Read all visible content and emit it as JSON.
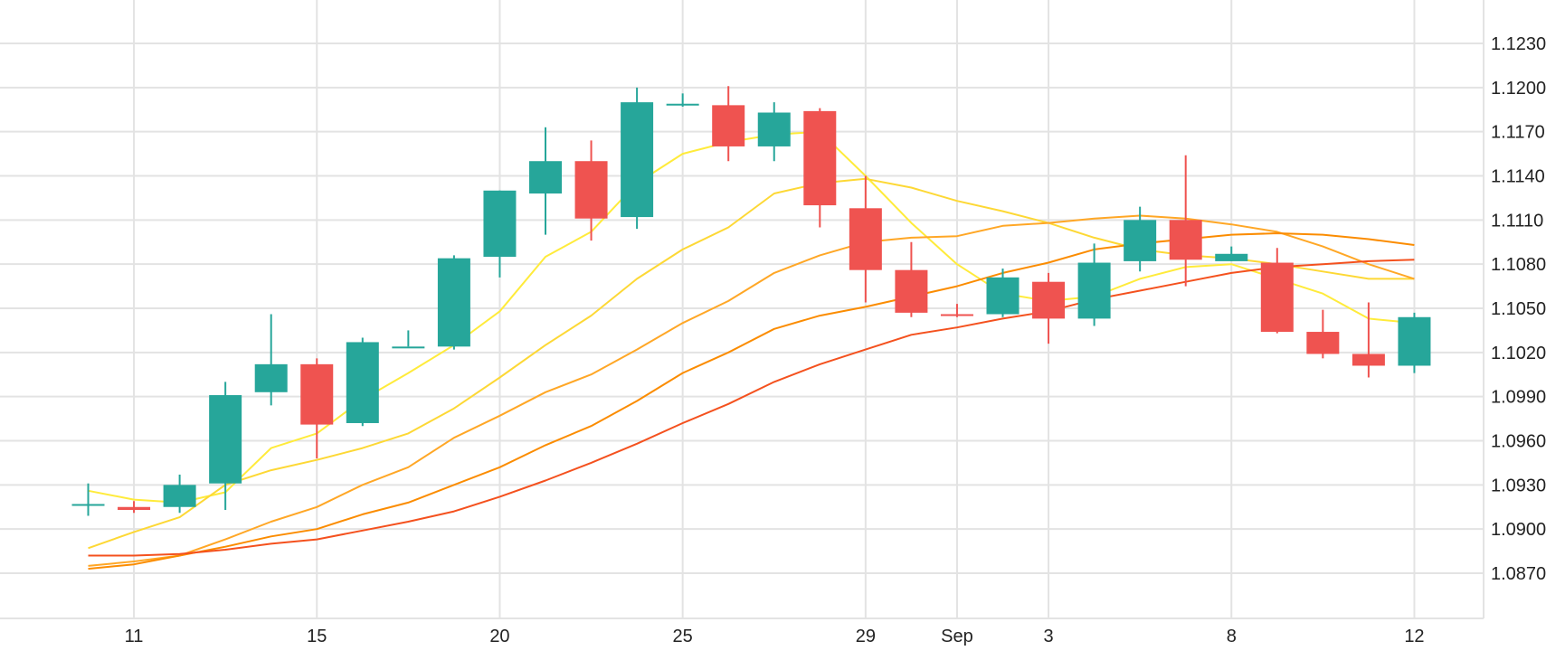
{
  "chart_data": {
    "type": "candlestick",
    "title": "",
    "xlabel": "",
    "ylabel": "",
    "ylim": [
      1.084,
      1.125
    ],
    "y_ticks": [
      "1.0870",
      "1.0900",
      "1.0930",
      "1.0960",
      "1.0990",
      "1.1020",
      "1.1050",
      "1.1080",
      "1.1110",
      "1.1140",
      "1.1170",
      "1.1200",
      "1.1230"
    ],
    "x_ticks": [
      {
        "label": "11",
        "index": 1
      },
      {
        "label": "15",
        "index": 5
      },
      {
        "label": "20",
        "index": 9
      },
      {
        "label": "25",
        "index": 13
      },
      {
        "label": "29",
        "index": 17
      },
      {
        "label": "Sep",
        "index": 19
      },
      {
        "label": "3",
        "index": 21
      },
      {
        "label": "8",
        "index": 25
      },
      {
        "label": "12",
        "index": 29
      }
    ],
    "grid": true,
    "up_color": "#26a69a",
    "down_color": "#ef5350",
    "candles": [
      {
        "o": 1.0917,
        "h": 1.0931,
        "l": 1.0909,
        "c": 1.0917
      },
      {
        "o": 1.0915,
        "h": 1.0919,
        "l": 1.0911,
        "c": 1.0913
      },
      {
        "o": 1.0915,
        "h": 1.0937,
        "l": 1.0911,
        "c": 1.093
      },
      {
        "o": 1.0931,
        "h": 1.1,
        "l": 1.0913,
        "c": 1.0991
      },
      {
        "o": 1.0993,
        "h": 1.1046,
        "l": 1.0984,
        "c": 1.1012
      },
      {
        "o": 1.1012,
        "h": 1.1016,
        "l": 1.0948,
        "c": 1.0971
      },
      {
        "o": 1.0972,
        "h": 1.103,
        "l": 1.097,
        "c": 1.1027
      },
      {
        "o": 1.1024,
        "h": 1.1035,
        "l": 1.1024,
        "c": 1.1024
      },
      {
        "o": 1.1024,
        "h": 1.1086,
        "l": 1.1022,
        "c": 1.1084
      },
      {
        "o": 1.1085,
        "h": 1.113,
        "l": 1.1071,
        "c": 1.113
      },
      {
        "o": 1.1128,
        "h": 1.1173,
        "l": 1.11,
        "c": 1.115
      },
      {
        "o": 1.115,
        "h": 1.1164,
        "l": 1.1096,
        "c": 1.1111
      },
      {
        "o": 1.1112,
        "h": 1.12,
        "l": 1.1104,
        "c": 1.119
      },
      {
        "o": 1.1189,
        "h": 1.1196,
        "l": 1.1187,
        "c": 1.1189
      },
      {
        "o": 1.1188,
        "h": 1.1201,
        "l": 1.115,
        "c": 1.116
      },
      {
        "o": 1.116,
        "h": 1.119,
        "l": 1.115,
        "c": 1.1183
      },
      {
        "o": 1.1184,
        "h": 1.1186,
        "l": 1.1105,
        "c": 1.112
      },
      {
        "o": 1.1118,
        "h": 1.114,
        "l": 1.1054,
        "c": 1.1076
      },
      {
        "o": 1.1076,
        "h": 1.1095,
        "l": 1.1044,
        "c": 1.1047
      },
      {
        "o": 1.1046,
        "h": 1.1053,
        "l": 1.1044,
        "c": 1.1045
      },
      {
        "o": 1.1046,
        "h": 1.1077,
        "l": 1.1044,
        "c": 1.1071
      },
      {
        "o": 1.1068,
        "h": 1.1074,
        "l": 1.1026,
        "c": 1.1043
      },
      {
        "o": 1.1043,
        "h": 1.1094,
        "l": 1.1038,
        "c": 1.1081
      },
      {
        "o": 1.1082,
        "h": 1.1119,
        "l": 1.1075,
        "c": 1.111
      },
      {
        "o": 1.111,
        "h": 1.1154,
        "l": 1.1065,
        "c": 1.1083
      },
      {
        "o": 1.1082,
        "h": 1.1092,
        "l": 1.1082,
        "c": 1.1087
      },
      {
        "o": 1.1081,
        "h": 1.1091,
        "l": 1.1033,
        "c": 1.1034
      },
      {
        "o": 1.1034,
        "h": 1.1049,
        "l": 1.1016,
        "c": 1.1019
      },
      {
        "o": 1.1019,
        "h": 1.1054,
        "l": 1.1003,
        "c": 1.1011
      },
      {
        "o": 1.1011,
        "h": 1.1047,
        "l": 1.1006,
        "c": 1.1044
      }
    ],
    "series": [
      {
        "color": "#ffeb3b",
        "values": [
          1.0926,
          1.092,
          1.0918,
          1.0925,
          1.0955,
          1.0965,
          1.0988,
          1.1006,
          1.1025,
          1.1048,
          1.1085,
          1.1102,
          1.1135,
          1.1155,
          1.1163,
          1.1168,
          1.117,
          1.114,
          1.1108,
          1.108,
          1.106,
          1.1055,
          1.1058,
          1.107,
          1.1078,
          1.108,
          1.107,
          1.106,
          1.1043,
          1.104
        ]
      },
      {
        "color": "#fdd835",
        "values": [
          1.0887,
          1.0898,
          1.0908,
          1.093,
          1.094,
          1.0947,
          1.0955,
          1.0965,
          1.0982,
          1.1003,
          1.1025,
          1.1045,
          1.107,
          1.109,
          1.1105,
          1.1128,
          1.1135,
          1.1138,
          1.1132,
          1.1123,
          1.1116,
          1.1108,
          1.1098,
          1.109,
          1.1086,
          1.1084,
          1.108,
          1.1075,
          1.107,
          1.107
        ]
      },
      {
        "color": "#ffa726",
        "values": [
          1.0875,
          1.0878,
          1.0882,
          1.0893,
          1.0905,
          1.0915,
          1.093,
          1.0942,
          1.0962,
          1.0977,
          1.0993,
          1.1005,
          1.1022,
          1.104,
          1.1055,
          1.1074,
          1.1086,
          1.1095,
          1.1098,
          1.1099,
          1.1106,
          1.1108,
          1.1111,
          1.1113,
          1.1111,
          1.1107,
          1.1102,
          1.1092,
          1.108,
          1.107
        ]
      },
      {
        "color": "#fb8c00",
        "values": [
          1.0873,
          1.0876,
          1.0882,
          1.0888,
          1.0895,
          1.09,
          1.091,
          1.0918,
          1.093,
          1.0942,
          1.0957,
          1.097,
          1.0987,
          1.1006,
          1.102,
          1.1036,
          1.1045,
          1.1051,
          1.1058,
          1.1065,
          1.1074,
          1.1081,
          1.109,
          1.1094,
          1.1097,
          1.11,
          1.1101,
          1.11,
          1.1097,
          1.1093
        ]
      },
      {
        "color": "#f4511e",
        "values": [
          1.0882,
          1.0882,
          1.0883,
          1.0886,
          1.089,
          1.0893,
          1.0899,
          1.0905,
          1.0912,
          1.0922,
          1.0933,
          1.0945,
          1.0958,
          1.0972,
          1.0985,
          1.1,
          1.1012,
          1.1022,
          1.1032,
          1.1037,
          1.1043,
          1.1048,
          1.1056,
          1.1062,
          1.1068,
          1.1074,
          1.1078,
          1.108,
          1.1082,
          1.1083
        ]
      }
    ]
  }
}
